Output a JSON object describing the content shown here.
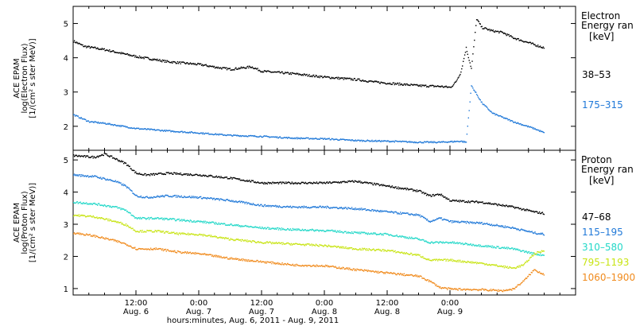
{
  "chart_data": [
    {
      "type": "line",
      "ylabel_lines": [
        "ACE EPAM",
        "log(Electron Flux)",
        "[1/(cm² s ster MeV)]"
      ],
      "ylim": [
        1.3,
        5.5
      ],
      "yticks": [
        2,
        3,
        4,
        5
      ],
      "xlim_hours": [
        0,
        96
      ],
      "legend_title": [
        "Electron",
        "Energy ran",
        "[keV]"
      ],
      "series": [
        {
          "name": "38–53",
          "color": "#000000",
          "jitter": 0.03,
          "points": [
            [
              0,
              4.5
            ],
            [
              2,
              4.35
            ],
            [
              6,
              4.25
            ],
            [
              12,
              4.05
            ],
            [
              18,
              3.9
            ],
            [
              24,
              3.82
            ],
            [
              28,
              3.72
            ],
            [
              30,
              3.68
            ],
            [
              34,
              3.75
            ],
            [
              36,
              3.62
            ],
            [
              42,
              3.55
            ],
            [
              48,
              3.45
            ],
            [
              54,
              3.38
            ],
            [
              58,
              3.3
            ],
            [
              62,
              3.25
            ],
            [
              66,
              3.2
            ],
            [
              70,
              3.18
            ],
            [
              72,
              3.15
            ],
            [
              73,
              3.3
            ],
            [
              74,
              3.6
            ],
            [
              75,
              4.3
            ],
            [
              76,
              3.7
            ],
            [
              77,
              5.15
            ],
            [
              78,
              4.9
            ],
            [
              80,
              4.8
            ],
            [
              82,
              4.75
            ],
            [
              84,
              4.6
            ],
            [
              86,
              4.5
            ],
            [
              88,
              4.4
            ],
            [
              90,
              4.3
            ]
          ]
        },
        {
          "name": "175–315",
          "color": "#1f78d8",
          "jitter": 0.02,
          "points": [
            [
              0,
              2.35
            ],
            [
              3,
              2.15
            ],
            [
              6,
              2.1
            ],
            [
              12,
              1.95
            ],
            [
              18,
              1.88
            ],
            [
              24,
              1.82
            ],
            [
              30,
              1.75
            ],
            [
              36,
              1.72
            ],
            [
              42,
              1.67
            ],
            [
              48,
              1.65
            ],
            [
              54,
              1.6
            ],
            [
              60,
              1.58
            ],
            [
              66,
              1.55
            ],
            [
              70,
              1.55
            ],
            [
              74,
              1.58
            ],
            [
              75,
              1.55
            ],
            [
              76,
              3.2
            ],
            [
              78,
              2.7
            ],
            [
              80,
              2.4
            ],
            [
              84,
              2.15
            ],
            [
              88,
              1.95
            ],
            [
              90,
              1.82
            ]
          ]
        }
      ]
    },
    {
      "type": "line",
      "ylabel_lines": [
        "ACE EPAM",
        "log(Proton Flux)",
        "[1/(cm² s ster MeV)]"
      ],
      "ylim": [
        0.8,
        5.3
      ],
      "yticks": [
        1,
        2,
        3,
        4,
        5
      ],
      "xlim_hours": [
        0,
        96
      ],
      "legend_title": [
        "Proton",
        "Energy ran",
        "[keV]"
      ],
      "series": [
        {
          "name": "47–68",
          "color": "#000000",
          "jitter": 0.03,
          "points": [
            [
              0,
              5.15
            ],
            [
              4,
              5.1
            ],
            [
              6,
              5.2
            ],
            [
              8,
              5.05
            ],
            [
              10,
              4.9
            ],
            [
              12,
              4.6
            ],
            [
              14,
              4.55
            ],
            [
              18,
              4.6
            ],
            [
              24,
              4.55
            ],
            [
              30,
              4.45
            ],
            [
              36,
              4.3
            ],
            [
              42,
              4.3
            ],
            [
              48,
              4.3
            ],
            [
              54,
              4.35
            ],
            [
              60,
              4.2
            ],
            [
              64,
              4.1
            ],
            [
              66,
              4.05
            ],
            [
              68,
              3.9
            ],
            [
              70,
              3.95
            ],
            [
              72,
              3.75
            ],
            [
              78,
              3.7
            ],
            [
              84,
              3.55
            ],
            [
              88,
              3.4
            ],
            [
              90,
              3.35
            ]
          ]
        },
        {
          "name": "115–195",
          "color": "#1f78d8",
          "jitter": 0.03,
          "points": [
            [
              0,
              4.55
            ],
            [
              4,
              4.5
            ],
            [
              8,
              4.35
            ],
            [
              10,
              4.2
            ],
            [
              12,
              3.9
            ],
            [
              14,
              3.85
            ],
            [
              18,
              3.9
            ],
            [
              24,
              3.85
            ],
            [
              30,
              3.75
            ],
            [
              36,
              3.6
            ],
            [
              42,
              3.55
            ],
            [
              48,
              3.55
            ],
            [
              54,
              3.5
            ],
            [
              60,
              3.4
            ],
            [
              66,
              3.3
            ],
            [
              68,
              3.1
            ],
            [
              70,
              3.2
            ],
            [
              72,
              3.1
            ],
            [
              78,
              3.05
            ],
            [
              84,
              2.9
            ],
            [
              88,
              2.75
            ],
            [
              90,
              2.7
            ]
          ]
        },
        {
          "name": "310–580",
          "color": "#22d8c8",
          "jitter": 0.03,
          "points": [
            [
              0,
              3.7
            ],
            [
              4,
              3.65
            ],
            [
              8,
              3.55
            ],
            [
              10,
              3.45
            ],
            [
              12,
              3.2
            ],
            [
              16,
              3.2
            ],
            [
              20,
              3.15
            ],
            [
              24,
              3.1
            ],
            [
              30,
              3.0
            ],
            [
              36,
              2.9
            ],
            [
              42,
              2.85
            ],
            [
              48,
              2.82
            ],
            [
              54,
              2.75
            ],
            [
              60,
              2.7
            ],
            [
              66,
              2.55
            ],
            [
              68,
              2.45
            ],
            [
              72,
              2.45
            ],
            [
              78,
              2.35
            ],
            [
              84,
              2.25
            ],
            [
              88,
              2.1
            ],
            [
              90,
              2.05
            ]
          ]
        },
        {
          "name": "795–1193",
          "color": "#c8e414",
          "jitter": 0.03,
          "points": [
            [
              0,
              3.3
            ],
            [
              4,
              3.25
            ],
            [
              8,
              3.1
            ],
            [
              10,
              3.0
            ],
            [
              12,
              2.8
            ],
            [
              16,
              2.8
            ],
            [
              20,
              2.72
            ],
            [
              24,
              2.7
            ],
            [
              30,
              2.55
            ],
            [
              36,
              2.45
            ],
            [
              42,
              2.4
            ],
            [
              48,
              2.35
            ],
            [
              54,
              2.25
            ],
            [
              60,
              2.2
            ],
            [
              66,
              2.05
            ],
            [
              68,
              1.9
            ],
            [
              72,
              1.9
            ],
            [
              78,
              1.8
            ],
            [
              82,
              1.7
            ],
            [
              84,
              1.65
            ],
            [
              86,
              1.75
            ],
            [
              88,
              2.1
            ],
            [
              90,
              2.2
            ]
          ]
        },
        {
          "name": "1060–1900",
          "color": "#f08a1c",
          "jitter": 0.03,
          "points": [
            [
              0,
              2.75
            ],
            [
              4,
              2.65
            ],
            [
              8,
              2.5
            ],
            [
              10,
              2.4
            ],
            [
              12,
              2.25
            ],
            [
              16,
              2.25
            ],
            [
              20,
              2.15
            ],
            [
              24,
              2.1
            ],
            [
              30,
              1.95
            ],
            [
              36,
              1.85
            ],
            [
              42,
              1.75
            ],
            [
              48,
              1.72
            ],
            [
              54,
              1.6
            ],
            [
              60,
              1.5
            ],
            [
              66,
              1.4
            ],
            [
              68,
              1.25
            ],
            [
              70,
              1.05
            ],
            [
              72,
              1.0
            ],
            [
              78,
              0.98
            ],
            [
              82,
              0.95
            ],
            [
              84,
              1.0
            ],
            [
              86,
              1.25
            ],
            [
              88,
              1.6
            ],
            [
              90,
              1.45
            ]
          ]
        }
      ]
    }
  ],
  "x_axis": {
    "ticks": [
      {
        "hour": 12,
        "time": "12:00",
        "date": "Aug. 6"
      },
      {
        "hour": 24,
        "time": "0:00",
        "date": "Aug. 7"
      },
      {
        "hour": 36,
        "time": "12:00",
        "date": "Aug. 7"
      },
      {
        "hour": 48,
        "time": "0:00",
        "date": "Aug. 8"
      },
      {
        "hour": 60,
        "time": "12:00",
        "date": "Aug. 8"
      },
      {
        "hour": 72,
        "time": "0:00",
        "date": "Aug. 9"
      }
    ],
    "label": "hours:minutes, Aug.  6, 2011 - Aug.  9, 2011"
  }
}
